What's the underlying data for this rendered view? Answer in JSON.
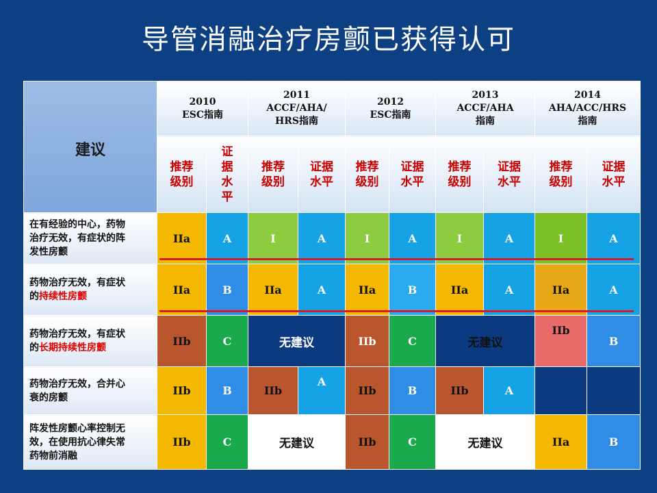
{
  "title": "导管消融治疗房颤已获得认可",
  "table": {
    "corner_label": "建议",
    "guidelines": [
      {
        "lines": [
          "2010",
          "ESC指南"
        ]
      },
      {
        "lines": [
          "2011",
          "ACCF/AHA/",
          "HRS指南"
        ]
      },
      {
        "lines": [
          "2012",
          "ESC指南"
        ]
      },
      {
        "lines": [
          "2013",
          "ACCF/AHA",
          "指南"
        ]
      },
      {
        "lines": [
          "2014",
          "AHA/ACC/HRS",
          "指南"
        ]
      }
    ],
    "sub_recommend": [
      "推荐",
      "级别"
    ],
    "sub_evidence": [
      "证据",
      "水平"
    ],
    "sub_evidence_vertical": [
      "证",
      "据",
      "水",
      "平"
    ],
    "rows": [
      {
        "label_parts": [
          "在有经验的中心，药物",
          "治疗无效，有症状的阵",
          "发性房颤"
        ],
        "cells": [
          "IIa",
          "A",
          "I",
          "A",
          "I",
          "A",
          "I",
          "A",
          "I",
          "A"
        ]
      },
      {
        "label_parts": [
          "药物治疗无效，有症状",
          "的",
          "持续性房颤"
        ],
        "cells": [
          "IIa",
          "B",
          "IIa",
          "A",
          "IIa",
          "B",
          "IIa",
          "A",
          "IIa",
          "A"
        ]
      },
      {
        "label_parts": [
          "药物治疗无效，有症状",
          "的",
          "长期持续性房颤"
        ],
        "cells": [
          "IIb",
          "C",
          "无建议",
          "IIb",
          "C",
          "无建议",
          "IIb",
          "B"
        ]
      },
      {
        "label_parts": [
          "药物治疗无效，合并心",
          "衰的房颤"
        ],
        "cells": [
          "IIb",
          "B",
          "IIb",
          "A",
          "IIb",
          "B",
          "IIb",
          "A",
          "",
          ""
        ]
      },
      {
        "label_parts": [
          "阵发性房颤心率控制无",
          "效，在使用抗心律失常",
          "药物前消融"
        ],
        "cells": [
          "IIb",
          "C",
          "无建议",
          "IIb",
          "C",
          "无建议",
          "IIa",
          "B"
        ]
      }
    ]
  },
  "colors": {
    "background": "#0d3f83",
    "class_IIa_orange": "#f5b800",
    "class_I_green": "#8dcb41",
    "class_IIb_brown": "#b9562e",
    "level_A_blue": "#16a3e6",
    "level_B_blue": "#2f8de6",
    "level_C_green": "#1aa94c",
    "no_rec_navy": "#0c3a80",
    "highlight_line": "#d61c2c"
  }
}
